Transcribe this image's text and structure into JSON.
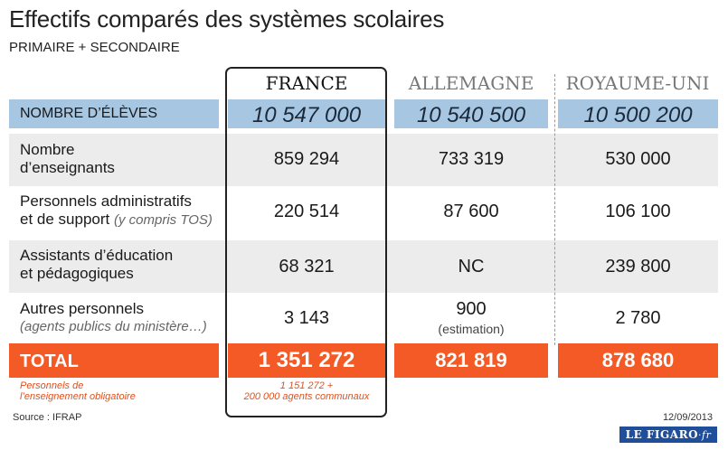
{
  "title": "Effectifs comparés des systèmes scolaires",
  "subtitle": "PRIMAIRE + SECONDAIRE",
  "countries": [
    "FRANCE",
    "ALLEMAGNE",
    "ROYAUME-UNI"
  ],
  "chart_data": {
    "type": "table",
    "columns": [
      "",
      "FRANCE",
      "ALLEMAGNE",
      "ROYAUME-UNI"
    ],
    "rows": [
      {
        "label": "NOMBRE D’ÉLÈVES",
        "values": [
          "10 547 000",
          "10 540 500",
          "10 500 200"
        ]
      },
      {
        "label_lines": [
          "Nombre",
          "d’enseignants"
        ],
        "values": [
          "859 294",
          "733 319",
          "530 000"
        ]
      },
      {
        "label_lines": [
          "Personnels administratifs",
          "et de support"
        ],
        "label_italic": "(y compris TOS)",
        "values": [
          "220 514",
          "87 600",
          "106 100"
        ]
      },
      {
        "label_lines": [
          "Assistants d’éducation",
          "et pédagogiques"
        ],
        "values": [
          "68 321",
          "NC",
          "239 800"
        ]
      },
      {
        "label_lines": [
          "Autres personnels"
        ],
        "label_italic": "(agents publics du ministère…)",
        "values": [
          "3 143",
          "900",
          "2 780"
        ],
        "notes": [
          "",
          "(estimation)",
          ""
        ]
      },
      {
        "label": "TOTAL",
        "values": [
          "1 351 272",
          "821 819",
          "878 680"
        ]
      }
    ]
  },
  "footnotes": {
    "left": [
      "Personnels de",
      "l’enseignement obligatoire"
    ],
    "france": [
      "1 151 272 +",
      "200 000 agents communaux"
    ]
  },
  "source": "Source : IFRAP",
  "date": "12/09/2013",
  "logo": {
    "name": "LE FIGARO",
    "suffix": "·fr"
  },
  "colors": {
    "blue_band": "#a7c6e2",
    "orange_band": "#f45a26",
    "grey_band": "#ececec",
    "footnote": "#e0501d",
    "logo_bg": "#1f4f9a"
  }
}
